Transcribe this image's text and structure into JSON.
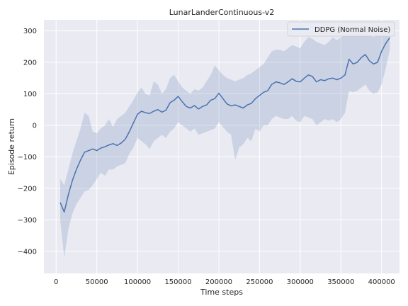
{
  "chart_data": {
    "type": "line",
    "title": "LunarLanderContinuous-v2",
    "xlabel": "Time steps",
    "ylabel": "Episode return",
    "xlim": [
      -15000,
      422000
    ],
    "ylim": [
      -470,
      335
    ],
    "xticks": [
      0,
      50000,
      100000,
      150000,
      200000,
      250000,
      300000,
      350000,
      400000
    ],
    "yticks": [
      -400,
      -300,
      -200,
      -100,
      0,
      100,
      200,
      300
    ],
    "grid": true,
    "legend_position": "top-right",
    "series": [
      {
        "name": "DDPG (Normal Noise)",
        "color": "#4c72b0",
        "x": [
          5000,
          10000,
          15000,
          20000,
          25000,
          30000,
          35000,
          40000,
          45000,
          50000,
          55000,
          60000,
          65000,
          70000,
          75000,
          80000,
          85000,
          90000,
          95000,
          100000,
          105000,
          110000,
          115000,
          120000,
          125000,
          130000,
          135000,
          140000,
          145000,
          150000,
          155000,
          160000,
          165000,
          170000,
          175000,
          180000,
          185000,
          190000,
          195000,
          200000,
          205000,
          210000,
          215000,
          220000,
          225000,
          230000,
          235000,
          240000,
          245000,
          250000,
          255000,
          260000,
          265000,
          270000,
          275000,
          280000,
          285000,
          290000,
          295000,
          300000,
          305000,
          310000,
          315000,
          320000,
          325000,
          330000,
          335000,
          340000,
          345000,
          350000,
          355000,
          360000,
          365000,
          370000,
          375000,
          380000,
          385000,
          390000,
          395000,
          400000,
          405000,
          410000
        ],
        "y": [
          -245,
          -275,
          -220,
          -175,
          -140,
          -110,
          -85,
          -80,
          -75,
          -80,
          -72,
          -68,
          -62,
          -58,
          -64,
          -56,
          -44,
          -20,
          8,
          35,
          45,
          40,
          38,
          45,
          50,
          42,
          48,
          72,
          80,
          92,
          75,
          60,
          55,
          63,
          52,
          60,
          65,
          80,
          85,
          102,
          85,
          68,
          62,
          65,
          60,
          55,
          65,
          70,
          85,
          95,
          105,
          110,
          130,
          138,
          135,
          130,
          138,
          148,
          140,
          138,
          150,
          160,
          155,
          138,
          145,
          142,
          148,
          150,
          145,
          150,
          160,
          210,
          195,
          200,
          215,
          225,
          205,
          195,
          200,
          235,
          260,
          278
        ],
        "upper": [
          -170,
          -190,
          -140,
          -90,
          -50,
          -10,
          40,
          30,
          -20,
          -25,
          -10,
          0,
          20,
          -5,
          20,
          30,
          40,
          60,
          80,
          105,
          120,
          100,
          95,
          140,
          130,
          100,
          115,
          150,
          160,
          140,
          120,
          110,
          100,
          115,
          110,
          120,
          140,
          160,
          190,
          175,
          160,
          150,
          145,
          140,
          145,
          150,
          160,
          165,
          175,
          185,
          195,
          215,
          235,
          240,
          240,
          235,
          245,
          255,
          250,
          245,
          265,
          280,
          275,
          265,
          260,
          255,
          265,
          280,
          270,
          280,
          290,
          305,
          305,
          300,
          300,
          295,
          285,
          280,
          285,
          305,
          310,
          315
        ],
        "lower": [
          -300,
          -420,
          -330,
          -280,
          -250,
          -230,
          -210,
          -205,
          -190,
          -170,
          -150,
          -160,
          -140,
          -140,
          -130,
          -125,
          -120,
          -90,
          -70,
          -40,
          -50,
          -60,
          -75,
          -50,
          -40,
          -30,
          -40,
          -20,
          -10,
          10,
          0,
          -10,
          -20,
          -10,
          -30,
          -25,
          -20,
          -15,
          -10,
          10,
          -5,
          -20,
          -30,
          -110,
          -70,
          -60,
          -40,
          -50,
          -10,
          -20,
          0,
          0,
          20,
          30,
          25,
          20,
          20,
          30,
          15,
          10,
          30,
          25,
          20,
          0,
          10,
          20,
          15,
          20,
          10,
          20,
          40,
          110,
          105,
          110,
          120,
          130,
          110,
          100,
          105,
          130,
          180,
          240
        ]
      }
    ]
  }
}
